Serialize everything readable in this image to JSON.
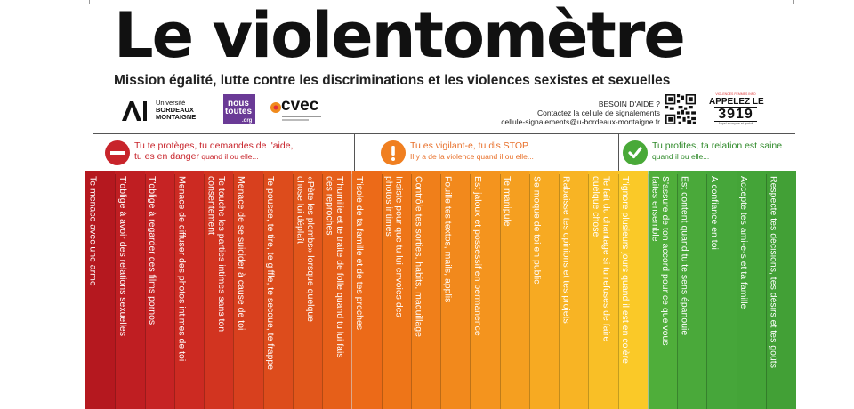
{
  "header": {
    "title": "Le violentomètre",
    "subtitle": "Mission égalité, lutte contre les discriminations et les violences sexistes et sexuelles"
  },
  "logos": {
    "ub": {
      "mark": "AL",
      "line1": "Université",
      "line2": "BORDEAUX",
      "line3": "MONTAIGNE"
    },
    "nous_toutes": {
      "line1": "nous",
      "line2": "toutes",
      "line3": ".org"
    },
    "cvec": {
      "name": "cvec"
    }
  },
  "help": {
    "heading": "BESOIN D'AIDE ?",
    "line1": "Contactez la cellule de signalements",
    "line2": "cellule-signalements@u-bordeaux-montaigne.fr",
    "phone_line1": "VIOLENCES FEMMES INFO",
    "phone_line2": "APPELEZ LE",
    "phone_number": "3919",
    "phone_line3": "Appel anonyme et gratuit"
  },
  "zones": [
    {
      "icon": "minus-icon",
      "color": "#c8242b",
      "text_color": "#c8242b",
      "line1": "Tu te protèges, tu demandes de l'aide,",
      "line2_strong": "tu es en danger",
      "line2_small": " quand il ou elle..."
    },
    {
      "icon": "exclamation-icon",
      "color": "#f07f20",
      "text_color": "#e8702a",
      "line1": "Tu es vigilant-e, tu dis STOP.",
      "line2_strong": "",
      "line2_small": "Il y a de la violence quand il ou elle..."
    },
    {
      "icon": "check-icon",
      "color": "#49a938",
      "text_color": "#2f8a2a",
      "line1": "Tu profites, ta relation est saine",
      "line2_strong": "",
      "line2_small": "quand il ou elle..."
    }
  ],
  "items": [
    "Te menace avec une arme",
    "T'oblige à avoir des relations sexuelles",
    "T'oblige à regarder des films pornos",
    "Menace de diffuser des photos intimes de toi",
    "Te touche les parties intimes sans ton\nconsentement",
    "Menace de se suicider à cause de toi",
    "Te pousse, te tire, te giffle, te secoue, te frappe",
    "«Pète les plombs» lorsque quelque\nchose lui déplaît",
    "T'humilie et te traite de folle quand tu lui fais\ndes reproches",
    "T'isole de ta famille et de tes proches",
    "Insiste pour que tu lui envoies des\nphotos intimes",
    "Contrôle tes sorties, habits, maquillage",
    "Fouille tes textos, mails, applis",
    "Est jaloux et possessif en permanence",
    "Te manipule",
    "Se moque de toi en public",
    "Rabaisse tes opinions et tes projets",
    "Te fait du chantage si tu refuses de faire\nquelque chose",
    "T'ignore plusieurs jours quand il est en colère",
    "S'assure de ton accord pour ce que vous\nfaites ensemble",
    "Est content quand tu te sens épanouie",
    "A confiance en toi",
    "Accepte tes ami-e-s et ta famille",
    "Respecte tes décisions, tes désirs et tes goûts"
  ],
  "item_colors": [
    "#b5181f",
    "#bf1e22",
    "#c62324",
    "#cc2a22",
    "#d23420",
    "#d8401e",
    "#dd4c1c",
    "#e1561b",
    "#e65f19",
    "#ec6a18",
    "#ee7518",
    "#f07f1a",
    "#f2891c",
    "#f4941e",
    "#f59f20",
    "#f7aa22",
    "#f8b424",
    "#f9bf26",
    "#fac928",
    "#4fae3a",
    "#4aa93a",
    "#46a63a",
    "#44a438",
    "#42a036"
  ]
}
